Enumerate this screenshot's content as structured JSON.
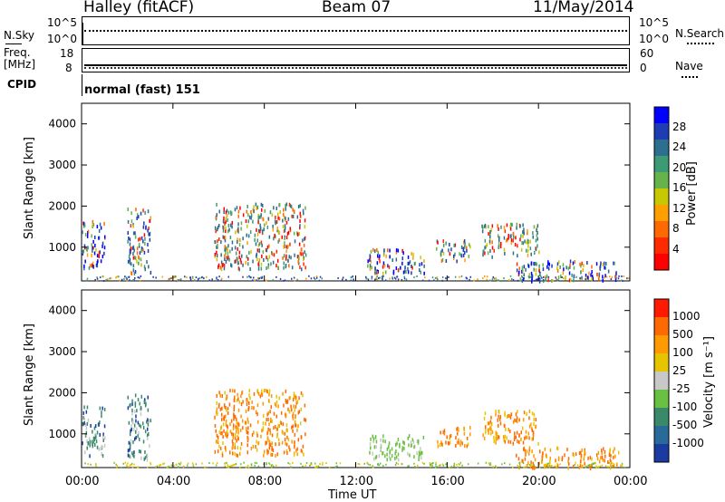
{
  "header": {
    "station": "Halley (fitACF)",
    "beam": "Beam 07",
    "date": "11/May/2014"
  },
  "nsky_panel": {
    "left_label": "N.Sky",
    "right_label": "N.Search",
    "left_ticks": [
      "10^5",
      "10^0"
    ],
    "right_ticks": [
      "10^5",
      "10^0"
    ]
  },
  "freq_panel": {
    "left_label_1": "Freq.",
    "left_label_2": "[MHz]",
    "right_label": "Nave",
    "left_ticks": [
      "18",
      "8"
    ],
    "right_ticks": [
      "60",
      "0"
    ]
  },
  "cpid_panel": {
    "label": "CPID",
    "text": "normal (fast) 151"
  },
  "power_panel": {
    "ylabel": "Slant Range [km]",
    "colorbar_label": "Power [dB]",
    "colorbar_ticks": [
      "28",
      "24",
      "20",
      "16",
      "12",
      "8",
      "4"
    ],
    "colors": [
      "#0000ff",
      "#1e3cb4",
      "#2e6e8e",
      "#3c9a74",
      "#66b24c",
      "#c8c800",
      "#ffa000",
      "#ff6a00",
      "#ff2a00",
      "#ff0000"
    ]
  },
  "velocity_panel": {
    "ylabel": "Slant Range [km]",
    "colorbar_label": "Velocity [m s⁻¹]",
    "colorbar_ticks": [
      "1000",
      "500",
      "100",
      "25",
      "-25",
      "-100",
      "-500",
      "-1000"
    ],
    "colors": [
      "#1a3ca0",
      "#2a6a9a",
      "#3a8a6a",
      "#6ac040",
      "#c8c8c8",
      "#e6c400",
      "#ff9a00",
      "#ff6a00",
      "#ff1a00"
    ]
  },
  "chart_data": {
    "type": "heatmap",
    "xlabel": "Time UT",
    "x_ticks": [
      "00:00",
      "04:00",
      "08:00",
      "12:00",
      "16:00",
      "20:00",
      "00:00"
    ],
    "y_ticks": [
      "1000",
      "2000",
      "3000",
      "4000"
    ],
    "ylim": [
      180,
      4500
    ],
    "xlim_hours": [
      0,
      24
    ],
    "scatter_regions": [
      {
        "t0": 0.0,
        "t1": 1.0,
        "r0": 500,
        "r1": 1700
      },
      {
        "t0": 2.0,
        "t1": 3.0,
        "r0": 400,
        "r1": 2000
      },
      {
        "t0": 5.8,
        "t1": 9.8,
        "r0": 500,
        "r1": 2100
      },
      {
        "t0": 12.5,
        "t1": 15.0,
        "r0": 400,
        "r1": 1000
      },
      {
        "t0": 15.5,
        "t1": 17.0,
        "r0": 700,
        "r1": 1200
      },
      {
        "t0": 17.5,
        "t1": 20.0,
        "r0": 800,
        "r1": 1600
      },
      {
        "t0": 19.0,
        "t1": 23.5,
        "r0": 200,
        "r1": 700
      }
    ]
  }
}
